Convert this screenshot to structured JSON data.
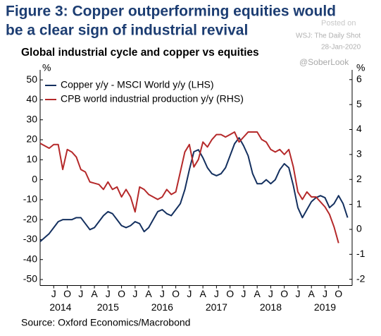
{
  "chart_data": {
    "type": "line",
    "title": [
      "Figure 3: Copper outperforming equities would",
      "be a clear sign of industrial revival"
    ],
    "subtitle": "Global industrial cycle and copper vs equities",
    "source": "Source: Oxford Economics/Macrobond",
    "watermark": [
      "Posted on",
      "WSJ: The Daily Shot",
      "28-Jan-2020",
      "@SoberLook"
    ],
    "y_label": "%",
    "y2_label": "%",
    "x": [
      "2014-04",
      "2014-05",
      "2014-06",
      "2014-07",
      "2014-08",
      "2014-09",
      "2014-10",
      "2014-11",
      "2014-12",
      "2015-01",
      "2015-02",
      "2015-03",
      "2015-04",
      "2015-05",
      "2015-06",
      "2015-07",
      "2015-08",
      "2015-09",
      "2015-10",
      "2015-11",
      "2015-12",
      "2016-01",
      "2016-02",
      "2016-03",
      "2016-04",
      "2016-05",
      "2016-06",
      "2016-07",
      "2016-08",
      "2016-09",
      "2016-10",
      "2016-11",
      "2016-12",
      "2017-01",
      "2017-02",
      "2017-03",
      "2017-04",
      "2017-05",
      "2017-06",
      "2017-07",
      "2017-08",
      "2017-09",
      "2017-10",
      "2017-11",
      "2017-12",
      "2018-01",
      "2018-02",
      "2018-03",
      "2018-04",
      "2018-05",
      "2018-06",
      "2018-07",
      "2018-08",
      "2018-09",
      "2018-10",
      "2018-11",
      "2018-12",
      "2019-01",
      "2019-02",
      "2019-03",
      "2019-04",
      "2019-05",
      "2019-06",
      "2019-07",
      "2019-08",
      "2019-09",
      "2019-10",
      "2019-11",
      "2019-12"
    ],
    "xlim": [
      "2014-04",
      "2020-01"
    ],
    "xticks": [
      {
        "value": "2014-07",
        "label": "J"
      },
      {
        "value": "2014-10",
        "label": "O"
      },
      {
        "value": "2015-01",
        "label": "J"
      },
      {
        "value": "2015-04",
        "label": "A"
      },
      {
        "value": "2015-07",
        "label": "J"
      },
      {
        "value": "2015-10",
        "label": "O"
      },
      {
        "value": "2016-01",
        "label": "J"
      },
      {
        "value": "2016-04",
        "label": "A"
      },
      {
        "value": "2016-07",
        "label": "J"
      },
      {
        "value": "2016-10",
        "label": "O"
      },
      {
        "value": "2017-01",
        "label": "J"
      },
      {
        "value": "2017-04",
        "label": "A"
      },
      {
        "value": "2017-07",
        "label": "J"
      },
      {
        "value": "2017-10",
        "label": "O"
      },
      {
        "value": "2018-01",
        "label": "J"
      },
      {
        "value": "2018-04",
        "label": "A"
      },
      {
        "value": "2018-07",
        "label": "J"
      },
      {
        "value": "2018-10",
        "label": "O"
      },
      {
        "value": "2019-01",
        "label": "J"
      },
      {
        "value": "2019-04",
        "label": "A"
      },
      {
        "value": "2019-07",
        "label": "J"
      },
      {
        "value": "2019-10",
        "label": "O"
      }
    ],
    "years": [
      "2014",
      "2015",
      "2016",
      "2017",
      "2018",
      "2019"
    ],
    "ylim": [
      -53,
      55
    ],
    "yticks": [
      -50,
      -40,
      -30,
      -20,
      -10,
      0,
      10,
      20,
      30,
      40,
      50
    ],
    "y2lim": [
      -2.25,
      6.39
    ],
    "y2ticks": [
      -2,
      -1,
      0,
      1,
      2,
      3,
      4,
      5,
      6
    ],
    "series": [
      {
        "name": "Copper y/y - MSCI World y/y (LHS)",
        "color": "#14305f",
        "values": [
          -31,
          -29,
          -27,
          -24,
          -21,
          -20,
          -20,
          -20,
          -19,
          -19,
          -22,
          -25,
          -24,
          -21,
          -18,
          -16,
          -17,
          -20,
          -23,
          -24,
          -23,
          -21,
          -22,
          -26,
          -24,
          -20,
          -16,
          -15,
          -17,
          -18,
          -15,
          -12,
          -5,
          5,
          14,
          15,
          11,
          6,
          3,
          2,
          3,
          6,
          12,
          18,
          21,
          17,
          12,
          3,
          -2,
          -2,
          0,
          -2,
          0,
          5,
          8,
          6,
          -3,
          -14,
          -19,
          -15,
          -11,
          -9,
          -8,
          -9,
          -14,
          -12,
          -8,
          -12,
          -19
        ]
      },
      {
        "name": "CPB world industrial production y/y (RHS)",
        "color": "#b5292a",
        "axis": "y2",
        "values": [
          3.45,
          3.35,
          3.25,
          3.4,
          3.4,
          2.4,
          3.2,
          3.1,
          2.9,
          2.4,
          2.3,
          1.9,
          1.85,
          1.8,
          1.6,
          1.9,
          1.6,
          1.7,
          1.3,
          1.6,
          1.3,
          0.7,
          1.7,
          1.6,
          1.4,
          1.3,
          1.2,
          1.3,
          1.6,
          1.4,
          1.5,
          2.3,
          3.1,
          3.4,
          2.5,
          2.8,
          3.5,
          3.3,
          3.6,
          3.8,
          3.8,
          3.7,
          3.8,
          3.9,
          3.5,
          3.7,
          3.9,
          3.9,
          3.9,
          3.6,
          3.5,
          3.2,
          3.1,
          3.2,
          3.0,
          3.2,
          2.5,
          1.5,
          1.2,
          1.5,
          1.3,
          1.3,
          1.1,
          0.9,
          0.6,
          0.1,
          -0.55,
          null,
          null
        ]
      }
    ]
  }
}
